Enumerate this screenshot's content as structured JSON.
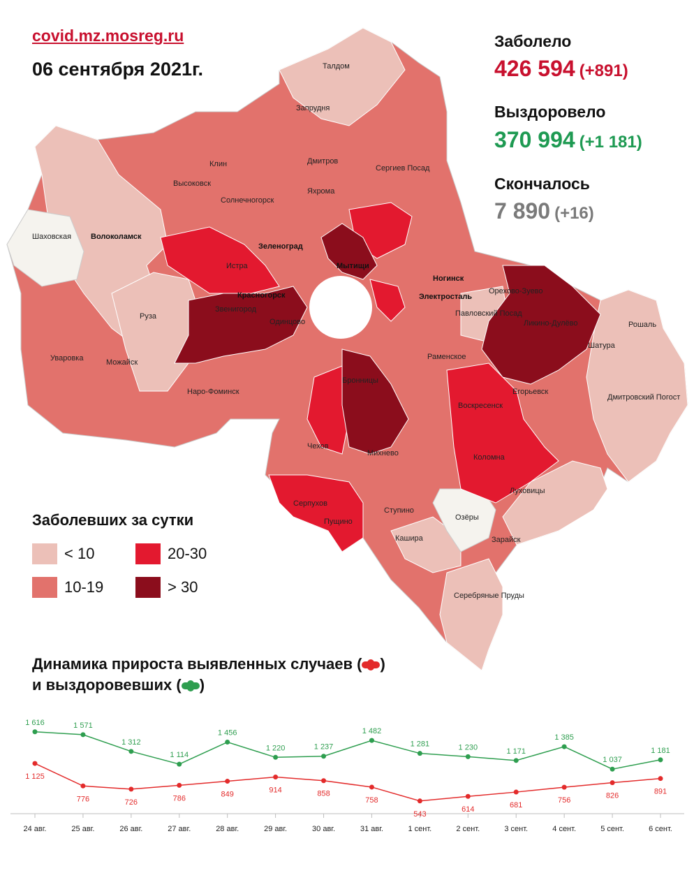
{
  "header": {
    "site": "covid.mz.mosreg.ru",
    "date": "06 сентября 2021г."
  },
  "stats": {
    "infected_label": "Заболело",
    "infected_value": "426 594",
    "infected_delta": "(+891)",
    "recovered_label": "Выздоровело",
    "recovered_value": "370 994",
    "recovered_delta": "(+1 181)",
    "deaths_label": "Скончалось",
    "deaths_value": "7 890",
    "deaths_delta": "(+16)"
  },
  "colors": {
    "lt10": "#ecc0b8",
    "c10_19": "#e2726c",
    "c20_30": "#e3192f",
    "gt30": "#8b0d1c",
    "white_area": "#f5f3ee",
    "red_line": "#e32b2b",
    "green_line": "#2e9e4f"
  },
  "map": {
    "places": [
      "Талдом",
      "Запрудня",
      "Клин",
      "Дмитров",
      "Сергиев Посад",
      "Высоковск",
      "Яхрома",
      "Солнечногорск",
      "Шаховская",
      "Волоколамск",
      "Зеленоград",
      "Истра",
      "Мытищи",
      "Ногинск",
      "Красногорск",
      "Электросталь",
      "Орехово-Зуево",
      "Звенигород",
      "Одинцово",
      "Павловский Посад",
      "Ликино-Дулёво",
      "Рошаль",
      "Руза",
      "Шатура",
      "Уваровка",
      "Можайск",
      "Раменское",
      "Наро-Фоминск",
      "Бронницы",
      "Воскресенск",
      "Егорьевск",
      "Дмитровский Погост",
      "Чехов",
      "Михнево",
      "Коломна",
      "Серпухов",
      "Луховицы",
      "Пущино",
      "Ступино",
      "Озёры",
      "Кашира",
      "Зарайск",
      "Серебряные Пруды"
    ]
  },
  "legend": {
    "title": "Заболевших за сутки",
    "items": [
      {
        "label": "< 10",
        "color": "#ecc0b8"
      },
      {
        "label": "20-30",
        "color": "#e3192f"
      },
      {
        "label": "10-19",
        "color": "#e2726c"
      },
      {
        "label": "> 30",
        "color": "#8b0d1c"
      }
    ]
  },
  "dynamics": {
    "title_line1_a": "Динамика прироста выявленных случаев (",
    "title_line1_b": ")",
    "title_line2_a": "и выздоровевших (",
    "title_line2_b": ")"
  },
  "chart_data": {
    "type": "line",
    "categories": [
      "24 авг.",
      "25 авг.",
      "26 авг.",
      "27 авг.",
      "28 авг.",
      "29 авг.",
      "30 авг.",
      "31 авг.",
      "1 сент.",
      "2 сент.",
      "3 сент.",
      "4 сент.",
      "5 сент.",
      "6 сент."
    ],
    "series": [
      {
        "name": "выздоровевших",
        "color": "#2e9e4f",
        "values": [
          1616,
          1571,
          1312,
          1114,
          1456,
          1220,
          1237,
          1482,
          1281,
          1230,
          1171,
          1385,
          1037,
          1181
        ],
        "labels": [
          "1 616",
          "1 571",
          "1 312",
          "1 114",
          "1 456",
          "1 220",
          "1 237",
          "1 482",
          "1 281",
          "1 230",
          "1 171",
          "1 385",
          "1 037",
          "1 181"
        ]
      },
      {
        "name": "выявленных случаев",
        "color": "#e32b2b",
        "values": [
          1125,
          776,
          726,
          786,
          849,
          914,
          858,
          758,
          543,
          614,
          681,
          756,
          826,
          891
        ],
        "labels": [
          "1 125",
          "776",
          "726",
          "786",
          "849",
          "914",
          "858",
          "758",
          "543",
          "614",
          "681",
          "756",
          "826",
          "891"
        ]
      }
    ],
    "ylim": [
      400,
      1700
    ],
    "grid": false,
    "legend": "title"
  }
}
